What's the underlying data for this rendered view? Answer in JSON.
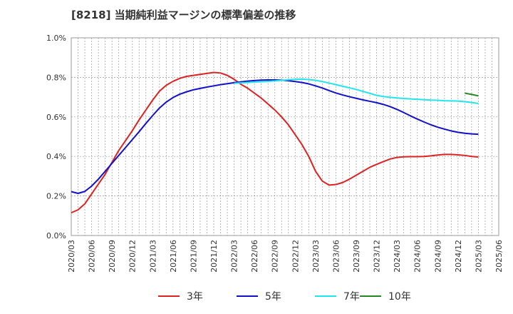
{
  "title": "[8218]  当期純利益マージンの標準偏差の推移",
  "chart_data": {
    "type": "line",
    "title": "[8218]  当期純利益マージンの標準偏差の推移",
    "xlabel": "",
    "ylabel": "",
    "x_ticks": [
      "2020/03",
      "2020/06",
      "2020/09",
      "2020/12",
      "2021/03",
      "2021/06",
      "2021/09",
      "2021/12",
      "2022/03",
      "2022/06",
      "2022/09",
      "2022/12",
      "2023/03",
      "2023/06",
      "2023/09",
      "2023/12",
      "2024/03",
      "2024/06",
      "2024/09",
      "2024/12",
      "2025/03",
      "2025/06"
    ],
    "y_ticks": [
      "0.0%",
      "0.2%",
      "0.4%",
      "0.6%",
      "0.8%",
      "1.0%"
    ],
    "ylim": [
      0,
      1.0
    ],
    "grid": true,
    "legend_position": "bottom",
    "series": [
      {
        "name": "3年",
        "color": "#dd2222",
        "points": [
          [
            "2020/03",
            0.115
          ],
          [
            "2020/04",
            0.13
          ],
          [
            "2020/05",
            0.16
          ],
          [
            "2020/06",
            0.21
          ],
          [
            "2020/07",
            0.26
          ],
          [
            "2020/08",
            0.31
          ],
          [
            "2020/09",
            0.37
          ],
          [
            "2020/10",
            0.43
          ],
          [
            "2020/11",
            0.48
          ],
          [
            "2020/12",
            0.53
          ],
          [
            "2021/01",
            0.585
          ],
          [
            "2021/02",
            0.635
          ],
          [
            "2021/03",
            0.685
          ],
          [
            "2021/04",
            0.73
          ],
          [
            "2021/05",
            0.76
          ],
          [
            "2021/06",
            0.78
          ],
          [
            "2021/07",
            0.795
          ],
          [
            "2021/08",
            0.805
          ],
          [
            "2021/09",
            0.81
          ],
          [
            "2021/10",
            0.815
          ],
          [
            "2021/11",
            0.82
          ],
          [
            "2021/12",
            0.825
          ],
          [
            "2022/01",
            0.822
          ],
          [
            "2022/02",
            0.81
          ],
          [
            "2022/03",
            0.79
          ],
          [
            "2022/04",
            0.765
          ],
          [
            "2022/05",
            0.745
          ],
          [
            "2022/06",
            0.72
          ],
          [
            "2022/07",
            0.695
          ],
          [
            "2022/08",
            0.665
          ],
          [
            "2022/09",
            0.635
          ],
          [
            "2022/10",
            0.6
          ],
          [
            "2022/11",
            0.56
          ],
          [
            "2022/12",
            0.51
          ],
          [
            "2023/01",
            0.46
          ],
          [
            "2023/02",
            0.4
          ],
          [
            "2023/03",
            0.325
          ],
          [
            "2023/04",
            0.275
          ],
          [
            "2023/05",
            0.255
          ],
          [
            "2023/06",
            0.258
          ],
          [
            "2023/07",
            0.268
          ],
          [
            "2023/08",
            0.285
          ],
          [
            "2023/09",
            0.305
          ],
          [
            "2023/10",
            0.325
          ],
          [
            "2023/11",
            0.345
          ],
          [
            "2023/12",
            0.36
          ],
          [
            "2024/01",
            0.374
          ],
          [
            "2024/02",
            0.387
          ],
          [
            "2024/03",
            0.395
          ],
          [
            "2024/04",
            0.398
          ],
          [
            "2024/05",
            0.399
          ],
          [
            "2024/06",
            0.399
          ],
          [
            "2024/07",
            0.4
          ],
          [
            "2024/08",
            0.403
          ],
          [
            "2024/09",
            0.407
          ],
          [
            "2024/10",
            0.41
          ],
          [
            "2024/11",
            0.41
          ],
          [
            "2024/12",
            0.408
          ],
          [
            "2025/01",
            0.405
          ],
          [
            "2025/02",
            0.4
          ],
          [
            "2025/03",
            0.397
          ]
        ]
      },
      {
        "name": "5年",
        "color": "#1111cc",
        "points": [
          [
            "2020/03",
            0.222
          ],
          [
            "2020/04",
            0.213
          ],
          [
            "2020/05",
            0.223
          ],
          [
            "2020/06",
            0.25
          ],
          [
            "2020/07",
            0.285
          ],
          [
            "2020/08",
            0.325
          ],
          [
            "2020/09",
            0.365
          ],
          [
            "2020/10",
            0.405
          ],
          [
            "2020/11",
            0.445
          ],
          [
            "2020/12",
            0.485
          ],
          [
            "2021/01",
            0.525
          ],
          [
            "2021/02",
            0.567
          ],
          [
            "2021/03",
            0.607
          ],
          [
            "2021/04",
            0.645
          ],
          [
            "2021/05",
            0.675
          ],
          [
            "2021/06",
            0.698
          ],
          [
            "2021/07",
            0.715
          ],
          [
            "2021/08",
            0.727
          ],
          [
            "2021/09",
            0.737
          ],
          [
            "2021/10",
            0.744
          ],
          [
            "2021/11",
            0.751
          ],
          [
            "2021/12",
            0.757
          ],
          [
            "2022/01",
            0.763
          ],
          [
            "2022/02",
            0.768
          ],
          [
            "2022/03",
            0.773
          ],
          [
            "2022/04",
            0.777
          ],
          [
            "2022/05",
            0.781
          ],
          [
            "2022/06",
            0.784
          ],
          [
            "2022/07",
            0.786
          ],
          [
            "2022/08",
            0.787
          ],
          [
            "2022/09",
            0.787
          ],
          [
            "2022/10",
            0.786
          ],
          [
            "2022/11",
            0.783
          ],
          [
            "2022/12",
            0.779
          ],
          [
            "2023/01",
            0.774
          ],
          [
            "2023/02",
            0.767
          ],
          [
            "2023/03",
            0.757
          ],
          [
            "2023/04",
            0.746
          ],
          [
            "2023/05",
            0.733
          ],
          [
            "2023/06",
            0.721
          ],
          [
            "2023/07",
            0.711
          ],
          [
            "2023/08",
            0.702
          ],
          [
            "2023/09",
            0.694
          ],
          [
            "2023/10",
            0.686
          ],
          [
            "2023/11",
            0.679
          ],
          [
            "2023/12",
            0.672
          ],
          [
            "2024/01",
            0.663
          ],
          [
            "2024/02",
            0.652
          ],
          [
            "2024/03",
            0.638
          ],
          [
            "2024/04",
            0.622
          ],
          [
            "2024/05",
            0.605
          ],
          [
            "2024/06",
            0.589
          ],
          [
            "2024/07",
            0.574
          ],
          [
            "2024/08",
            0.56
          ],
          [
            "2024/09",
            0.548
          ],
          [
            "2024/10",
            0.538
          ],
          [
            "2024/11",
            0.529
          ],
          [
            "2024/12",
            0.522
          ],
          [
            "2025/01",
            0.517
          ],
          [
            "2025/02",
            0.514
          ],
          [
            "2025/03",
            0.512
          ]
        ]
      },
      {
        "name": "7年",
        "color": "#22e5ee",
        "points": [
          [
            "2022/03",
            0.77
          ],
          [
            "2022/04",
            0.772
          ],
          [
            "2022/05",
            0.774
          ],
          [
            "2022/06",
            0.776
          ],
          [
            "2022/07",
            0.778
          ],
          [
            "2022/08",
            0.78
          ],
          [
            "2022/09",
            0.782
          ],
          [
            "2022/10",
            0.785
          ],
          [
            "2022/11",
            0.788
          ],
          [
            "2022/12",
            0.79
          ],
          [
            "2023/01",
            0.791
          ],
          [
            "2023/02",
            0.789
          ],
          [
            "2023/03",
            0.785
          ],
          [
            "2023/04",
            0.779
          ],
          [
            "2023/05",
            0.771
          ],
          [
            "2023/06",
            0.763
          ],
          [
            "2023/07",
            0.755
          ],
          [
            "2023/08",
            0.747
          ],
          [
            "2023/09",
            0.739
          ],
          [
            "2023/10",
            0.729
          ],
          [
            "2023/11",
            0.719
          ],
          [
            "2023/12",
            0.709
          ],
          [
            "2024/01",
            0.703
          ],
          [
            "2024/02",
            0.699
          ],
          [
            "2024/03",
            0.696
          ],
          [
            "2024/04",
            0.693
          ],
          [
            "2024/05",
            0.691
          ],
          [
            "2024/06",
            0.689
          ],
          [
            "2024/07",
            0.687
          ],
          [
            "2024/08",
            0.685
          ],
          [
            "2024/09",
            0.684
          ],
          [
            "2024/10",
            0.682
          ],
          [
            "2024/11",
            0.681
          ],
          [
            "2024/12",
            0.68
          ],
          [
            "2025/01",
            0.677
          ],
          [
            "2025/02",
            0.673
          ],
          [
            "2025/03",
            0.668
          ]
        ]
      },
      {
        "name": "10年",
        "color": "#228822",
        "points": [
          [
            "2025/01",
            0.72
          ],
          [
            "2025/02",
            0.714
          ],
          [
            "2025/03",
            0.706
          ]
        ]
      }
    ]
  }
}
